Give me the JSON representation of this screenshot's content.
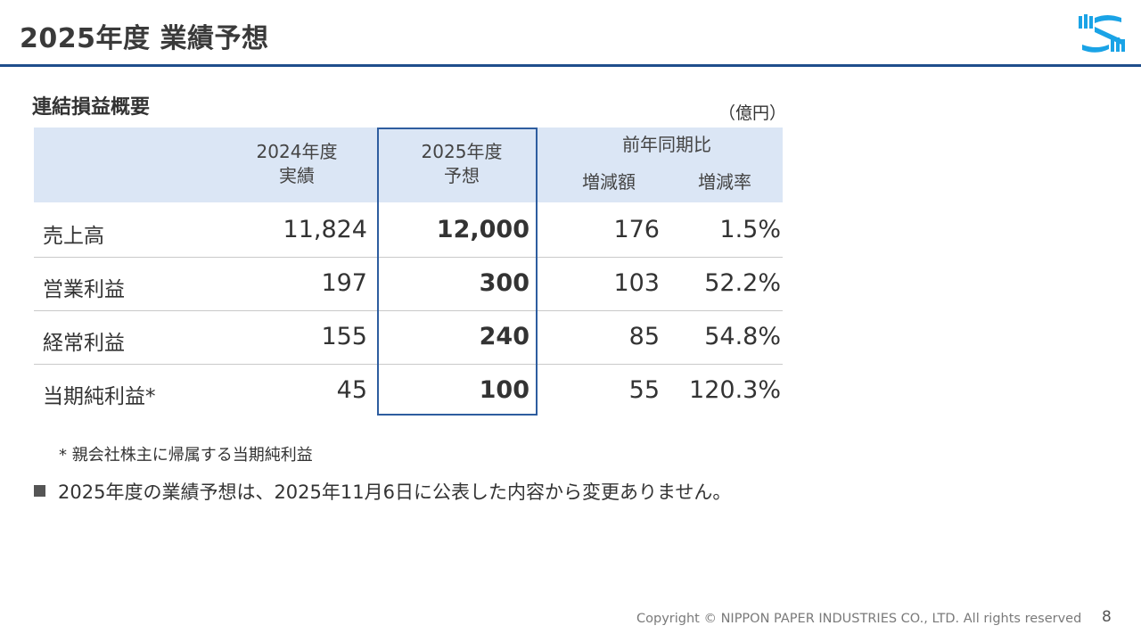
{
  "header": {
    "title": "2025年度 業績予想",
    "logo_icon": "company-logo-icon",
    "accent_color": "#1f4e8c",
    "logo_color": "#1aa3e6"
  },
  "section": {
    "heading": "連結損益概要",
    "unit": "（億円）"
  },
  "table": {
    "header_bg": "#dbe6f5",
    "highlight_border": "#2e5d9f",
    "columns": {
      "fy2024": {
        "line1": "2024年度",
        "line2": "実績"
      },
      "fy2025": {
        "line1": "2025年度",
        "line2": "予想"
      },
      "yoy": "前年同期比",
      "diff": "増減額",
      "rate": "増減率"
    },
    "rows": [
      {
        "label": "売上高",
        "fy2024": "11,824",
        "fy2025": "12,000",
        "diff": "176",
        "rate": "1.5%"
      },
      {
        "label": "営業利益",
        "fy2024": "197",
        "fy2025": "300",
        "diff": "103",
        "rate": "52.2%"
      },
      {
        "label": "経常利益",
        "fy2024": "155",
        "fy2025": "240",
        "diff": "85",
        "rate": "54.8%"
      },
      {
        "label": "当期純利益*",
        "fy2024": "45",
        "fy2025": "100",
        "diff": "55",
        "rate": "120.3%"
      }
    ]
  },
  "footnote": "* 親会社株主に帰属する当期純利益",
  "bullet": "2025年度の業績予想は、2025年11月6日に公表した内容から変更ありません。",
  "footer": {
    "copyright": "Copyright © NIPPON PAPER INDUSTRIES CO., LTD. All rights reserved",
    "page_number": "8"
  }
}
